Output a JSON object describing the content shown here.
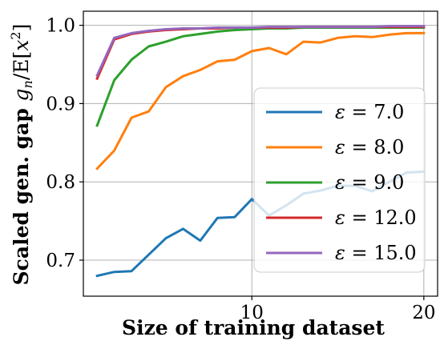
{
  "chart_data": {
    "type": "line",
    "xlabel": "Size of training dataset",
    "ylabel": "Scaled gen. gap g_n/E[x^2]",
    "ylabel_parts": {
      "prefix": "Scaled gen. gap ",
      "g": "g",
      "n": "n",
      "slash": "/",
      "E": "E",
      "open": "[",
      "x": "x",
      "exp": "2",
      "close": "]"
    },
    "xlim": [
      0.2,
      20.8
    ],
    "ylim": [
      0.654,
      1.018
    ],
    "xticks": [
      10,
      20
    ],
    "xtick_labels": [
      "10",
      "20"
    ],
    "yticks": [
      0.7,
      0.8,
      0.9,
      1.0
    ],
    "ytick_labels": [
      "0.7",
      "0.8",
      "0.9",
      "1.0"
    ],
    "grid": true,
    "legend_placement": "lower-right",
    "x": [
      1,
      2,
      3,
      4,
      5,
      6,
      7,
      8,
      9,
      10,
      11,
      12,
      13,
      14,
      15,
      16,
      17,
      18,
      19,
      20
    ],
    "series": [
      {
        "name": "ε = 7.0",
        "legend_value": "7.0",
        "color": "#1f77b4",
        "values": [
          0.68,
          0.685,
          0.686,
          0.707,
          0.728,
          0.74,
          0.725,
          0.754,
          0.755,
          0.778,
          0.757,
          0.77,
          0.785,
          0.789,
          0.795,
          0.795,
          0.788,
          0.8,
          0.812,
          0.813
        ]
      },
      {
        "name": "ε = 8.0",
        "legend_value": "8.0",
        "color": "#ff7f0e",
        "values": [
          0.817,
          0.84,
          0.882,
          0.89,
          0.921,
          0.935,
          0.943,
          0.954,
          0.956,
          0.967,
          0.971,
          0.963,
          0.979,
          0.978,
          0.984,
          0.986,
          0.985,
          0.988,
          0.99,
          0.99
        ]
      },
      {
        "name": "ε = 9.0",
        "legend_value": "9.0",
        "color": "#2ca02c",
        "values": [
          0.872,
          0.93,
          0.956,
          0.973,
          0.979,
          0.986,
          0.989,
          0.992,
          0.994,
          0.995,
          0.996,
          0.996,
          0.997,
          0.997,
          0.997,
          0.997,
          0.997,
          0.997,
          0.997,
          0.997
        ]
      },
      {
        "name": "ε = 12.0",
        "legend_value": "12.0",
        "color": "#d62728",
        "values": [
          0.932,
          0.982,
          0.989,
          0.992,
          0.994,
          0.995,
          0.996,
          0.996,
          0.997,
          0.997,
          0.997,
          0.997,
          0.998,
          0.998,
          0.998,
          0.998,
          0.998,
          0.998,
          0.998,
          0.998
        ]
      },
      {
        "name": "ε = 15.0",
        "legend_value": "15.0",
        "color": "#9467bd",
        "values": [
          0.936,
          0.984,
          0.99,
          0.993,
          0.995,
          0.996,
          0.996,
          0.997,
          0.997,
          0.997,
          0.998,
          0.998,
          0.998,
          0.998,
          0.998,
          0.998,
          0.998,
          0.999,
          0.999,
          0.999
        ]
      }
    ]
  }
}
